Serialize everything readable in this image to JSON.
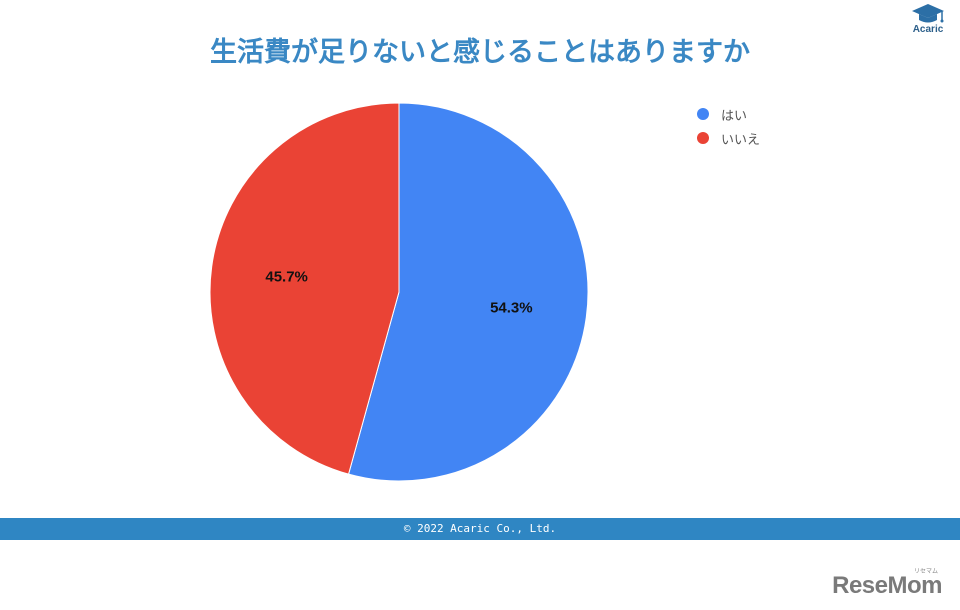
{
  "chart_data": {
    "type": "pie",
    "title": "生活費が足りないと感じることはありますか",
    "slices": [
      {
        "label": "はい",
        "value": 54.3,
        "value_label": "54.3%",
        "color": "#4285f4"
      },
      {
        "label": "いいえ",
        "value": 45.7,
        "value_label": "45.7%",
        "color": "#ea4335"
      }
    ],
    "legend_position": "top-right"
  },
  "brand": {
    "logo_text": "Acaric",
    "icon": "graduation-cap-icon"
  },
  "footer": {
    "copyright": "© 2022 Acaric Co., Ltd."
  },
  "watermark": {
    "text": "ReseMom",
    "small_text": "リセマム"
  }
}
